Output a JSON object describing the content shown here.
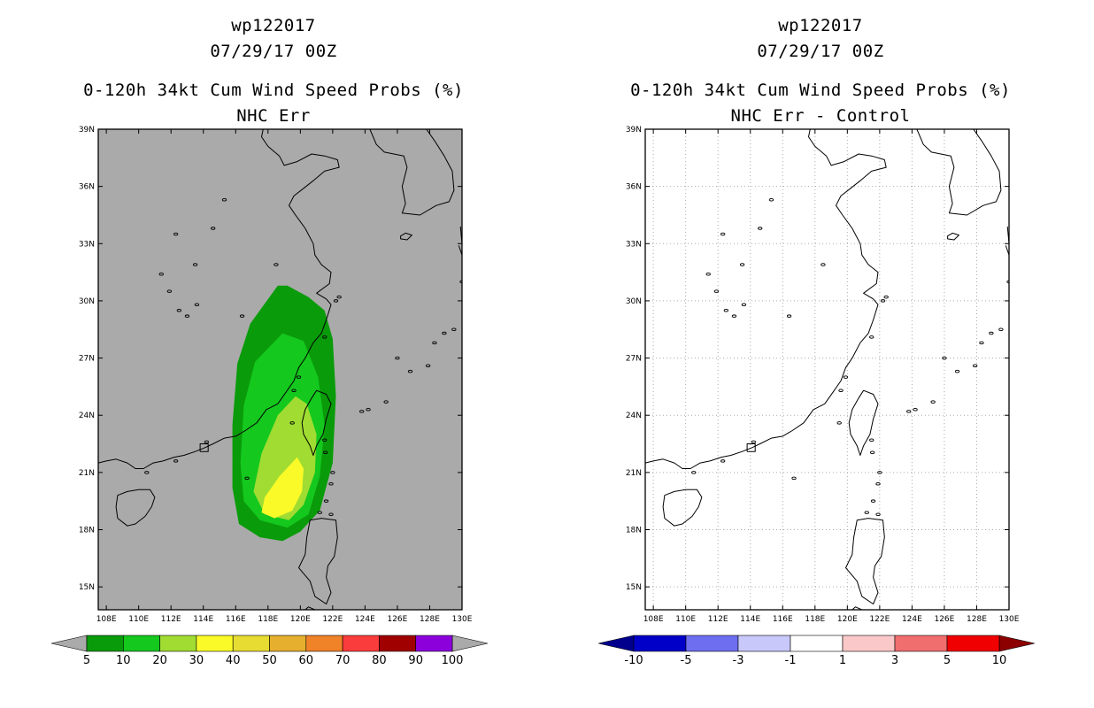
{
  "panels": [
    {
      "title_line1": "wp122017",
      "title_line2": "07/29/17 00Z",
      "title_line3": "0-120h 34kt Cum Wind Speed Probs (%)",
      "title_line4": "NHC Err"
    },
    {
      "title_line1": "wp122017",
      "title_line2": "07/29/17 00Z",
      "title_line3": "0-120h 34kt Cum Wind Speed Probs (%)",
      "title_line4": "NHC Err - Control"
    }
  ],
  "chart_data": [
    {
      "type": "heatmap",
      "title": "0-120h 34kt Cum Wind Speed Probs (%)",
      "subtitle": "NHC Err",
      "background": "#aaaaaa",
      "grid": false,
      "xlim": [
        107.5,
        130.0
      ],
      "ylim": [
        13.8,
        39.0
      ],
      "x_ticks": [
        108,
        110,
        112,
        114,
        116,
        118,
        120,
        122,
        124,
        126,
        128,
        130
      ],
      "x_tick_labels": [
        "108E",
        "110E",
        "112E",
        "114E",
        "116E",
        "118E",
        "120E",
        "122E",
        "124E",
        "126E",
        "128E",
        "130E"
      ],
      "y_ticks": [
        15,
        18,
        21,
        24,
        27,
        30,
        33,
        36,
        39
      ],
      "y_tick_labels": [
        "15N",
        "18N",
        "21N",
        "24N",
        "27N",
        "30N",
        "33N",
        "36N",
        "39N"
      ],
      "contours": [
        {
          "level": 5,
          "color": "#0a9b0a",
          "points": [
            [
              118.6,
              30.8
            ],
            [
              119.2,
              30.8
            ],
            [
              120.5,
              30.2
            ],
            [
              121.5,
              29.5
            ],
            [
              122.0,
              28.0
            ],
            [
              122.2,
              25.0
            ],
            [
              122.0,
              21.5
            ],
            [
              121.2,
              19.0
            ],
            [
              120.0,
              17.9
            ],
            [
              118.9,
              17.4
            ],
            [
              117.5,
              17.6
            ],
            [
              116.2,
              18.3
            ],
            [
              115.8,
              20.2
            ],
            [
              115.8,
              23.5
            ],
            [
              116.1,
              26.7
            ],
            [
              116.9,
              28.8
            ]
          ]
        },
        {
          "level": 10,
          "color": "#14c81e",
          "points": [
            [
              118.9,
              28.3
            ],
            [
              120.2,
              27.9
            ],
            [
              121.1,
              26.0
            ],
            [
              121.5,
              23.5
            ],
            [
              121.2,
              20.8
            ],
            [
              120.5,
              18.8
            ],
            [
              119.2,
              18.1
            ],
            [
              117.5,
              18.5
            ],
            [
              116.5,
              19.5
            ],
            [
              116.3,
              21.5
            ],
            [
              116.5,
              24.5
            ],
            [
              117.2,
              26.8
            ]
          ]
        },
        {
          "level": 20,
          "color": "#a0dc32",
          "points": [
            [
              119.7,
              25.0
            ],
            [
              120.4,
              24.6
            ],
            [
              121.0,
              23.0
            ],
            [
              120.9,
              21.0
            ],
            [
              120.2,
              19.3
            ],
            [
              119.3,
              18.5
            ],
            [
              117.8,
              18.8
            ],
            [
              117.1,
              20.0
            ],
            [
              117.6,
              22.0
            ],
            [
              118.6,
              24.0
            ]
          ]
        },
        {
          "level": 30,
          "color": "#fafa28",
          "points": [
            [
              119.8,
              21.8
            ],
            [
              120.2,
              21.2
            ],
            [
              120.1,
              20.0
            ],
            [
              119.5,
              19.0
            ],
            [
              118.4,
              18.6
            ],
            [
              117.6,
              18.9
            ],
            [
              117.8,
              19.7
            ],
            [
              118.7,
              20.8
            ]
          ]
        }
      ],
      "colorbar": {
        "levels": [
          "5",
          "10",
          "20",
          "30",
          "40",
          "50",
          "60",
          "70",
          "80",
          "90",
          "100"
        ],
        "colors": [
          "#0a9b0a",
          "#14c81e",
          "#a0dc32",
          "#fafa28",
          "#e6dc32",
          "#e6af2d",
          "#f08228",
          "#fa3c3c",
          "#a00000",
          "#8c00dc"
        ],
        "under_color": "#aaaaaa",
        "over_color": "#aaaaaa"
      }
    },
    {
      "type": "heatmap",
      "title": "0-120h 34kt Cum Wind Speed Probs (%)",
      "subtitle": "NHC Err - Control",
      "background": "#ffffff",
      "grid": true,
      "xlim": [
        107.5,
        130.0
      ],
      "ylim": [
        13.8,
        39.0
      ],
      "x_ticks": [
        108,
        110,
        112,
        114,
        116,
        118,
        120,
        122,
        124,
        126,
        128,
        130
      ],
      "x_tick_labels": [
        "108E",
        "110E",
        "112E",
        "114E",
        "116E",
        "118E",
        "120E",
        "122E",
        "124E",
        "126E",
        "128E",
        "130E"
      ],
      "y_ticks": [
        15,
        18,
        21,
        24,
        27,
        30,
        33,
        36,
        39
      ],
      "y_tick_labels": [
        "15N",
        "18N",
        "21N",
        "24N",
        "27N",
        "30N",
        "33N",
        "36N",
        "39N"
      ],
      "contours": [],
      "colorbar": {
        "levels": [
          "-10",
          "-5",
          "-3",
          "-1",
          "1",
          "3",
          "5",
          "10"
        ],
        "colors": [
          "#0000c8",
          "#6e6ef0",
          "#c8c8fa",
          "#ffffff",
          "#fac8c8",
          "#f06e6e",
          "#f00000"
        ],
        "under_color": "#00008c",
        "over_color": "#8c0000"
      }
    }
  ],
  "map": {
    "coast_color": "#000000",
    "mainland_coast": [
      [
        107.5,
        21.5
      ],
      [
        108.0,
        21.6
      ],
      [
        108.6,
        21.7
      ],
      [
        109.3,
        21.5
      ],
      [
        109.8,
        21.2
      ],
      [
        110.3,
        21.2
      ],
      [
        110.9,
        21.5
      ],
      [
        111.5,
        21.6
      ],
      [
        112.2,
        21.8
      ],
      [
        112.8,
        21.9
      ],
      [
        113.5,
        22.1
      ],
      [
        114.1,
        22.3
      ],
      [
        114.6,
        22.5
      ],
      [
        115.3,
        22.8
      ],
      [
        116.0,
        22.9
      ],
      [
        116.6,
        23.2
      ],
      [
        117.3,
        23.6
      ],
      [
        117.9,
        24.3
      ],
      [
        118.6,
        24.6
      ],
      [
        119.1,
        25.2
      ],
      [
        119.6,
        25.8
      ],
      [
        119.9,
        26.5
      ],
      [
        120.3,
        27.0
      ],
      [
        120.8,
        27.8
      ],
      [
        121.3,
        28.3
      ],
      [
        121.6,
        29.0
      ],
      [
        121.9,
        29.8
      ],
      [
        121.6,
        30.1
      ],
      [
        121.0,
        30.4
      ],
      [
        121.8,
        30.9
      ],
      [
        121.9,
        31.5
      ],
      [
        121.3,
        31.9
      ],
      [
        120.9,
        32.4
      ],
      [
        120.8,
        33.0
      ],
      [
        120.3,
        33.8
      ],
      [
        119.7,
        34.5
      ],
      [
        119.3,
        35.0
      ],
      [
        119.6,
        35.5
      ],
      [
        120.2,
        35.9
      ],
      [
        120.8,
        36.3
      ],
      [
        121.5,
        36.8
      ],
      [
        122.4,
        37.0
      ],
      [
        122.3,
        37.4
      ],
      [
        121.5,
        37.6
      ],
      [
        120.7,
        37.7
      ],
      [
        119.8,
        37.3
      ],
      [
        119.0,
        37.1
      ],
      [
        118.7,
        37.6
      ],
      [
        118.0,
        38.1
      ],
      [
        117.6,
        38.6
      ],
      [
        117.7,
        39.0
      ]
    ],
    "korea_coast": [
      [
        124.3,
        39.0
      ],
      [
        124.7,
        38.2
      ],
      [
        125.2,
        37.8
      ],
      [
        126.4,
        37.6
      ],
      [
        126.6,
        37.0
      ],
      [
        126.3,
        36.0
      ],
      [
        126.5,
        35.1
      ],
      [
        126.3,
        34.6
      ],
      [
        127.4,
        34.5
      ],
      [
        128.4,
        35.0
      ],
      [
        129.2,
        35.2
      ],
      [
        129.5,
        35.8
      ],
      [
        129.4,
        36.8
      ],
      [
        128.9,
        37.6
      ],
      [
        128.3,
        38.4
      ],
      [
        127.8,
        39.0
      ]
    ],
    "taiwan": [
      [
        121.0,
        25.3
      ],
      [
        121.6,
        25.1
      ],
      [
        121.9,
        24.6
      ],
      [
        121.6,
        23.8
      ],
      [
        121.4,
        23.0
      ],
      [
        121.0,
        22.4
      ],
      [
        120.8,
        21.9
      ],
      [
        120.6,
        22.4
      ],
      [
        120.2,
        23.0
      ],
      [
        120.1,
        23.6
      ],
      [
        120.3,
        24.3
      ],
      [
        120.7,
        24.9
      ]
    ],
    "hainan": [
      [
        108.6,
        19.2
      ],
      [
        108.7,
        19.8
      ],
      [
        109.3,
        20.0
      ],
      [
        110.0,
        20.1
      ],
      [
        110.7,
        20.1
      ],
      [
        111.0,
        19.7
      ],
      [
        110.8,
        19.2
      ],
      [
        110.4,
        18.7
      ],
      [
        109.8,
        18.3
      ],
      [
        109.3,
        18.2
      ],
      [
        108.7,
        18.6
      ]
    ],
    "luzon": [
      [
        120.6,
        18.5
      ],
      [
        121.3,
        18.6
      ],
      [
        122.2,
        18.5
      ],
      [
        122.3,
        17.6
      ],
      [
        122.1,
        16.6
      ],
      [
        121.7,
        16.1
      ],
      [
        121.6,
        15.5
      ],
      [
        121.9,
        14.7
      ],
      [
        121.6,
        14.1
      ],
      [
        120.9,
        14.5
      ],
      [
        120.6,
        15.3
      ],
      [
        119.9,
        16.0
      ],
      [
        120.3,
        16.7
      ],
      [
        120.4,
        17.6
      ]
    ],
    "jeju": [
      [
        126.2,
        33.4
      ],
      [
        126.5,
        33.55
      ],
      [
        126.9,
        33.45
      ],
      [
        126.6,
        33.2
      ],
      [
        126.2,
        33.25
      ]
    ],
    "kyushu": [
      [
        129.9,
        33.9
      ],
      [
        130.0,
        33.0
      ],
      [
        130.0,
        32.4
      ],
      [
        129.8,
        32.9
      ]
    ],
    "mindoro": [
      [
        120.3,
        13.8
      ],
      [
        120.5,
        13.95
      ],
      [
        120.9,
        13.8
      ]
    ],
    "hk_box": [
      [
        113.8,
        22.1
      ],
      [
        114.3,
        22.1
      ],
      [
        114.3,
        22.5
      ],
      [
        113.8,
        22.5
      ],
      [
        113.8,
        22.1
      ]
    ],
    "islands_small": [
      [
        122.2,
        30.0
      ],
      [
        122.4,
        30.2
      ],
      [
        121.5,
        28.1
      ],
      [
        119.9,
        26.0
      ],
      [
        119.6,
        25.3
      ],
      [
        119.5,
        23.6
      ],
      [
        121.5,
        22.7
      ],
      [
        121.55,
        22.05
      ],
      [
        124.2,
        24.3
      ],
      [
        125.3,
        24.7
      ],
      [
        123.8,
        24.2
      ],
      [
        126.8,
        26.3
      ],
      [
        127.9,
        26.6
      ],
      [
        128.3,
        27.8
      ],
      [
        128.9,
        28.3
      ],
      [
        129.5,
        28.5
      ],
      [
        130.0,
        31.0
      ],
      [
        126.0,
        27.0
      ],
      [
        121.6,
        19.5
      ],
      [
        121.9,
        20.4
      ],
      [
        122.0,
        21.0
      ],
      [
        121.2,
        18.9
      ],
      [
        121.9,
        18.8
      ],
      [
        114.2,
        22.6
      ],
      [
        116.7,
        20.7
      ],
      [
        112.3,
        21.6
      ],
      [
        110.5,
        21.0
      ],
      [
        111.4,
        31.4
      ],
      [
        111.9,
        30.5
      ],
      [
        113.6,
        29.8
      ],
      [
        112.5,
        29.5
      ],
      [
        113.0,
        29.2
      ],
      [
        116.4,
        29.2
      ],
      [
        112.3,
        33.5
      ],
      [
        115.3,
        35.3
      ],
      [
        113.5,
        31.9
      ],
      [
        118.5,
        31.9
      ],
      [
        114.6,
        33.8
      ]
    ]
  }
}
